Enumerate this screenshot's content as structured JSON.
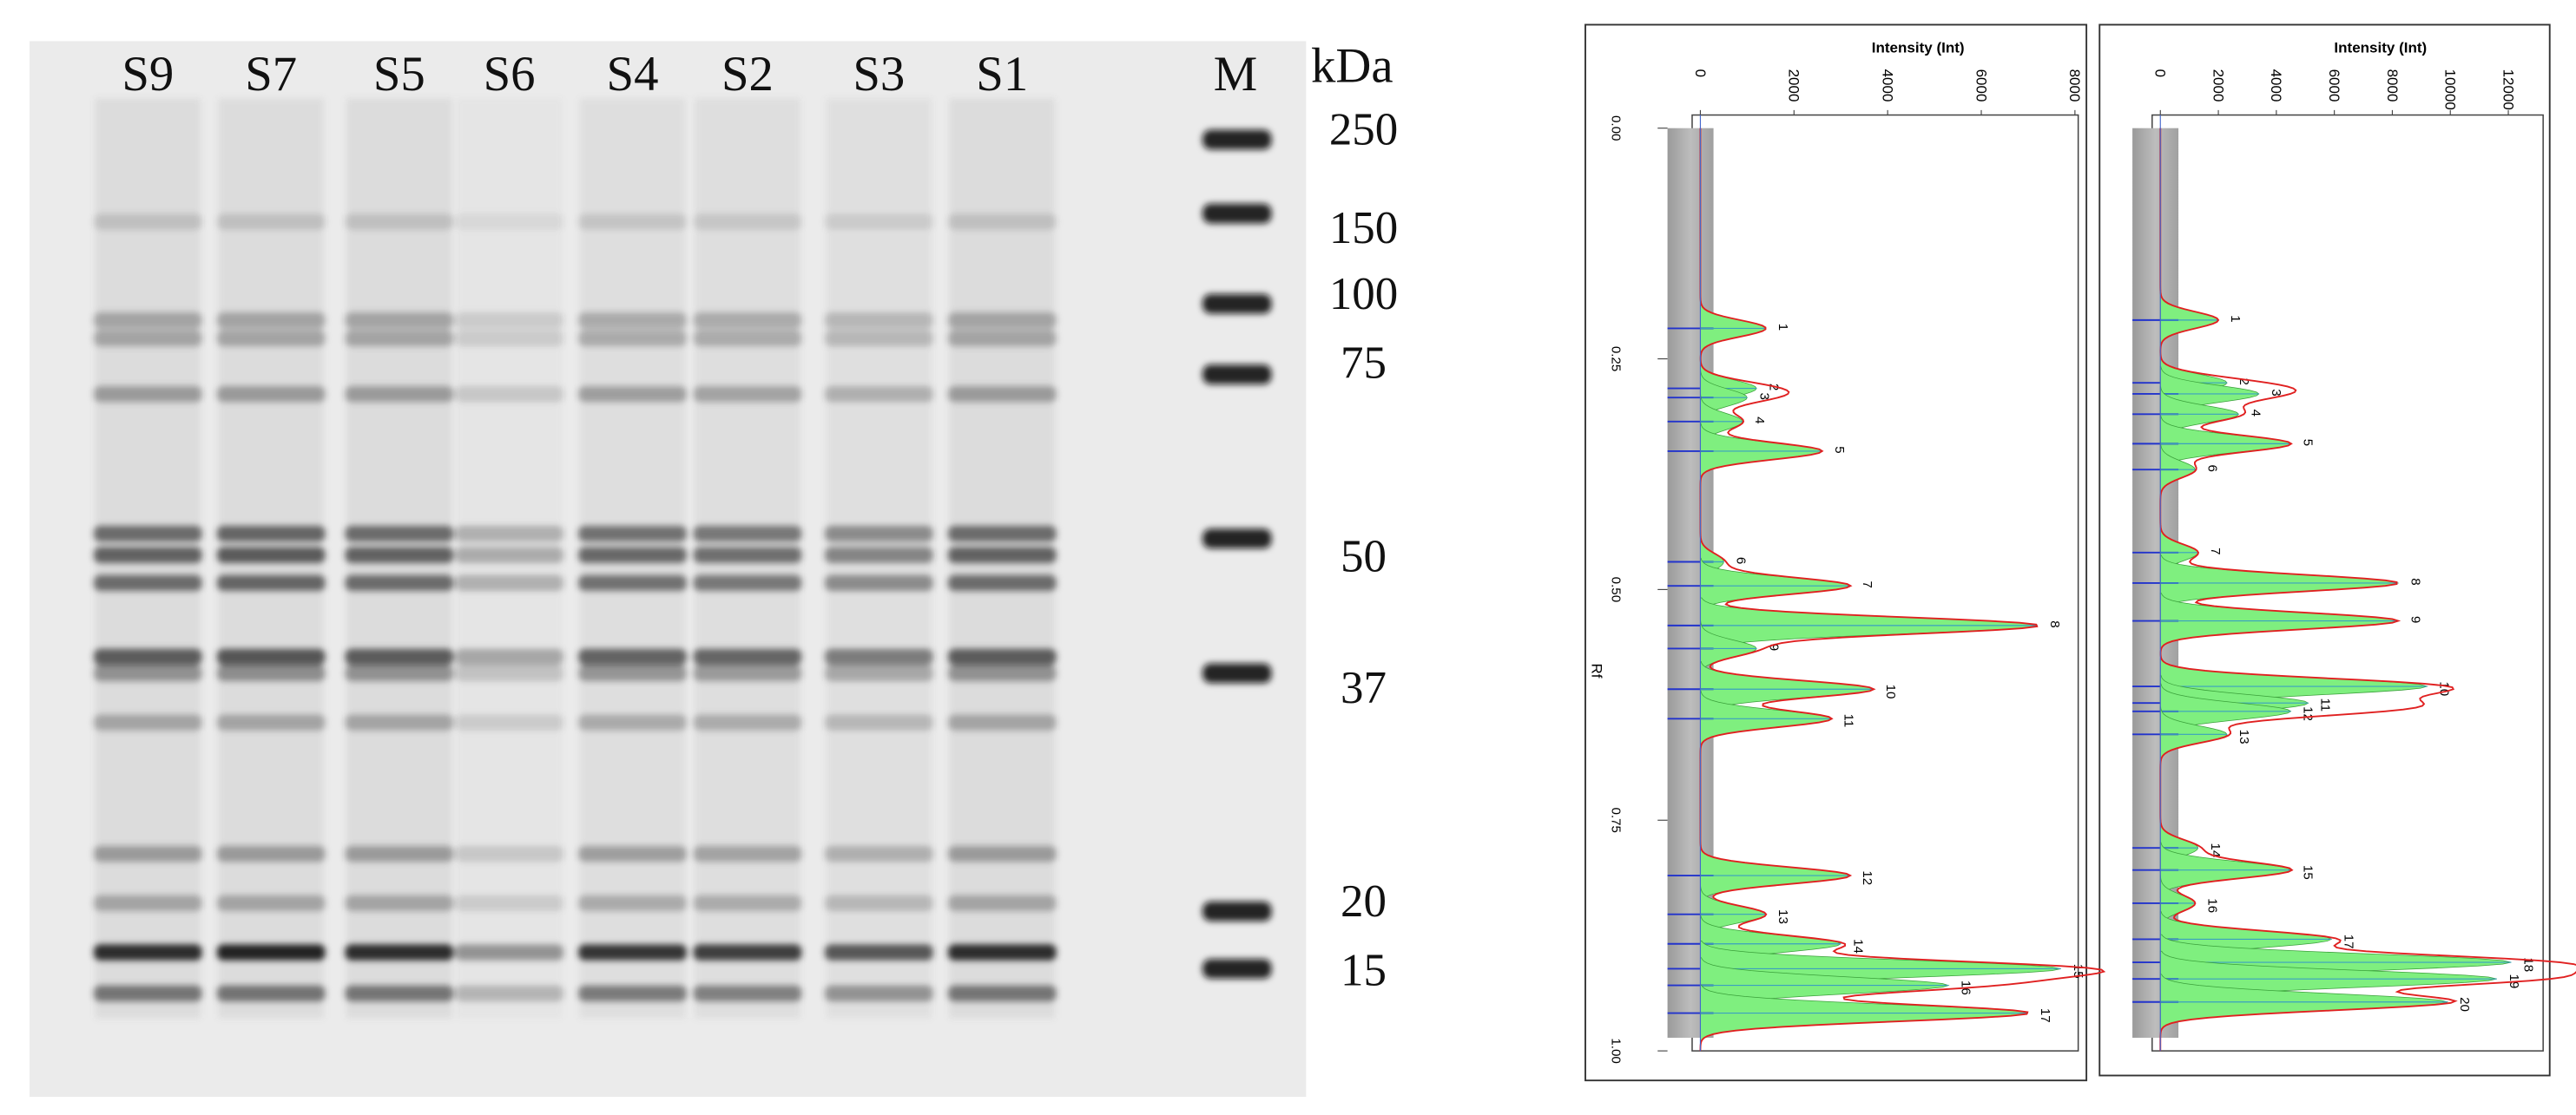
{
  "gel": {
    "lanes": [
      "S9",
      "S7",
      "S5",
      "S6",
      "S4",
      "S2",
      "S3",
      "S1",
      "M"
    ],
    "unit": "kDa",
    "markers": [
      "250",
      "150",
      "100",
      "75",
      "50",
      "37",
      "20",
      "15"
    ]
  },
  "densitograms": [
    {
      "axis_title": "Intensity (Int)",
      "intensity_ticks": [
        "0",
        "2000",
        "4000",
        "6000",
        "8000"
      ],
      "rf_label": "Rf",
      "rf_ticks": [
        "0.00",
        "0.25",
        "0.50",
        "0.75",
        "1.00"
      ],
      "peaks": [
        {
          "label": "1",
          "rf": 0.217,
          "intensity": 1400
        },
        {
          "label": "2",
          "rf": 0.282,
          "intensity": 1200
        },
        {
          "label": "3",
          "rf": 0.292,
          "intensity": 1000
        },
        {
          "label": "4",
          "rf": 0.318,
          "intensity": 900
        },
        {
          "label": "5",
          "rf": 0.35,
          "intensity": 2600
        },
        {
          "label": "6",
          "rf": 0.47,
          "intensity": 500
        },
        {
          "label": "7",
          "rf": 0.496,
          "intensity": 3200
        },
        {
          "label": "8",
          "rf": 0.539,
          "intensity": 7200
        },
        {
          "label": "9",
          "rf": 0.564,
          "intensity": 1200
        },
        {
          "label": "10",
          "rf": 0.608,
          "intensity": 3700
        },
        {
          "label": "11",
          "rf": 0.64,
          "intensity": 2800
        },
        {
          "label": "12",
          "rf": 0.81,
          "intensity": 3200
        },
        {
          "label": "13",
          "rf": 0.852,
          "intensity": 1400
        },
        {
          "label": "14",
          "rf": 0.884,
          "intensity": 3000
        },
        {
          "label": "15",
          "rf": 0.911,
          "intensity": 7700
        },
        {
          "label": "16",
          "rf": 0.929,
          "intensity": 5300
        },
        {
          "label": "17",
          "rf": 0.959,
          "intensity": 7000
        }
      ]
    },
    {
      "axis_title": "Intensity (Int)",
      "intensity_ticks": [
        "0",
        "2000",
        "4000",
        "6000",
        "8000",
        "10000",
        "12000"
      ],
      "peaks": [
        {
          "label": "1",
          "rf": 0.208,
          "intensity": 2000
        },
        {
          "label": "2",
          "rf": 0.276,
          "intensity": 2300
        },
        {
          "label": "3",
          "rf": 0.288,
          "intensity": 3400
        },
        {
          "label": "4",
          "rf": 0.31,
          "intensity": 2700
        },
        {
          "label": "5",
          "rf": 0.342,
          "intensity": 4500
        },
        {
          "label": "6",
          "rf": 0.37,
          "intensity": 1200
        },
        {
          "label": "7",
          "rf": 0.46,
          "intensity": 1300
        },
        {
          "label": "8",
          "rf": 0.493,
          "intensity": 8200
        },
        {
          "label": "9",
          "rf": 0.534,
          "intensity": 8200
        },
        {
          "label": "10",
          "rf": 0.605,
          "intensity": 9200
        },
        {
          "label": "11",
          "rf": 0.623,
          "intensity": 5100
        },
        {
          "label": "12",
          "rf": 0.632,
          "intensity": 4500
        },
        {
          "label": "13",
          "rf": 0.657,
          "intensity": 2300
        },
        {
          "label": "14",
          "rf": 0.78,
          "intensity": 1300
        },
        {
          "label": "15",
          "rf": 0.804,
          "intensity": 4500
        },
        {
          "label": "16",
          "rf": 0.84,
          "intensity": 1200
        },
        {
          "label": "17",
          "rf": 0.879,
          "intensity": 5900
        },
        {
          "label": "18",
          "rf": 0.904,
          "intensity": 12100
        },
        {
          "label": "19",
          "rf": 0.922,
          "intensity": 11600
        },
        {
          "label": "20",
          "rf": 0.947,
          "intensity": 9900
        }
      ]
    }
  ]
}
